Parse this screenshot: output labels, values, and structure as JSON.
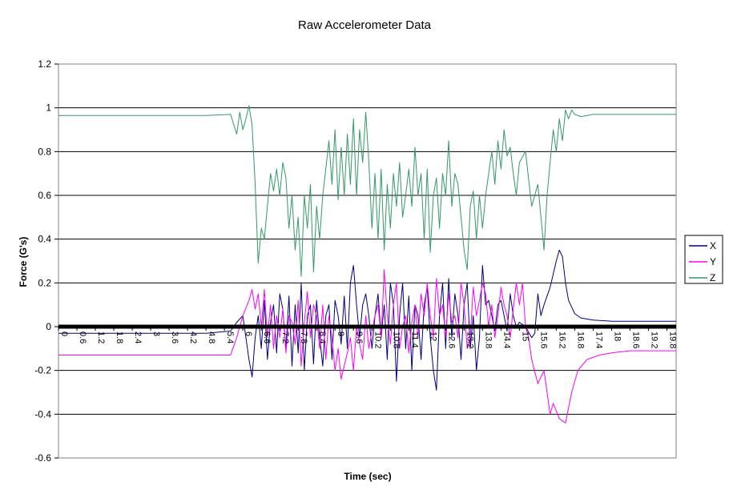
{
  "chart_data": {
    "type": "line",
    "title": "Raw Accelerometer Data",
    "xlabel": "Time (sec)",
    "ylabel": "Force (G's)",
    "ylim": [
      -0.6,
      1.2
    ],
    "xlim": [
      0,
      20.1
    ],
    "y_ticks": [
      "1.2",
      "1",
      "0.8",
      "0.6",
      "0.4",
      "0.2",
      "0",
      "-0.2",
      "-0.4",
      "-0.6"
    ],
    "x_ticks": [
      "0",
      "0.6",
      "1.2",
      "1.8",
      "2.4",
      "3",
      "3.6",
      "4.2",
      "4.8",
      "5.4",
      "6",
      "6.6",
      "7.2",
      "7.8",
      "8.4",
      "9",
      "9.6",
      "10.2",
      "10.8",
      "11.4",
      "12",
      "12.6",
      "13.2",
      "13.8",
      "14.4",
      "15",
      "15.6",
      "16.2",
      "16.8",
      "17.4",
      "18",
      "18.6",
      "19.2",
      "19.8"
    ],
    "grid": true,
    "legend_position": "right",
    "series": [
      {
        "name": "X",
        "color": "#000080",
        "x": [
          0,
          1.2,
          2.4,
          3.6,
          4.8,
          5.6,
          5.8,
          6.0,
          6.2,
          6.3,
          6.4,
          6.5,
          6.6,
          6.7,
          6.8,
          6.9,
          7.0,
          7.1,
          7.2,
          7.3,
          7.4,
          7.5,
          7.6,
          7.7,
          7.8,
          7.9,
          8.0,
          8.1,
          8.2,
          8.3,
          8.4,
          8.5,
          8.6,
          8.7,
          8.8,
          8.9,
          9.0,
          9.1,
          9.2,
          9.3,
          9.4,
          9.5,
          9.6,
          9.7,
          9.8,
          9.9,
          10.0,
          10.1,
          10.2,
          10.3,
          10.4,
          10.5,
          10.6,
          10.7,
          10.8,
          10.9,
          11.0,
          11.1,
          11.2,
          11.3,
          11.4,
          11.5,
          11.6,
          11.7,
          11.8,
          11.9,
          12.0,
          12.1,
          12.2,
          12.3,
          12.4,
          12.5,
          12.6,
          12.7,
          12.8,
          12.9,
          13.0,
          13.1,
          13.2,
          13.3,
          13.4,
          13.5,
          13.6,
          13.7,
          13.8,
          13.9,
          14.0,
          14.1,
          14.2,
          14.3,
          14.4,
          14.5,
          14.6,
          14.7,
          14.8,
          14.9,
          15.0,
          15.2,
          15.4,
          15.5,
          15.6,
          15.7,
          15.8,
          16.0,
          16.2,
          16.3,
          16.4,
          16.5,
          16.6,
          16.8,
          17.0,
          17.4,
          18.0,
          18.6,
          19.2,
          19.8,
          20.1
        ],
        "y": [
          -0.03,
          -0.03,
          -0.03,
          -0.03,
          -0.03,
          -0.02,
          0.02,
          0.05,
          -0.15,
          -0.23,
          -0.05,
          0.05,
          -0.1,
          0.12,
          -0.15,
          0.02,
          0.1,
          -0.12,
          0.15,
          0.08,
          -0.1,
          0.14,
          -0.18,
          0.1,
          -0.12,
          0.2,
          -0.2,
          0.05,
          0.1,
          -0.17,
          0.12,
          -0.05,
          -0.18,
          0.05,
          0.1,
          -0.15,
          0.12,
          0.05,
          -0.08,
          0.14,
          -0.1,
          0.2,
          0.28,
          0.1,
          -0.05,
          0.1,
          0.15,
          0.05,
          -0.1,
          0.05,
          0.15,
          -0.05,
          0.1,
          -0.15,
          0.2,
          0.1,
          -0.25,
          0.05,
          0.2,
          -0.1,
          0.14,
          -0.2,
          0.1,
          0.05,
          -0.15,
          0.1,
          0.18,
          -0.05,
          -0.2,
          -0.29,
          0.05,
          0.2,
          -0.1,
          0.22,
          -0.05,
          0.15,
          0.05,
          -0.15,
          0.1,
          0.2,
          -0.1,
          0.05,
          -0.2,
          -0.05,
          0.28,
          0.1,
          0.12,
          0.05,
          -0.02,
          0.1,
          0.12,
          0.05,
          -0.02,
          0.15,
          0.05,
          0.0,
          0.02,
          0.0,
          -0.05,
          -0.03,
          0.15,
          0.05,
          0.1,
          0.18,
          0.3,
          0.35,
          0.32,
          0.2,
          0.12,
          0.06,
          0.04,
          0.03,
          0.025,
          0.025,
          0.025,
          0.025,
          0.025
        ]
      },
      {
        "name": "Y",
        "color": "#ff00ff",
        "x": [
          0,
          1.2,
          2.4,
          3.6,
          4.8,
          5.6,
          5.8,
          6.0,
          6.2,
          6.3,
          6.4,
          6.5,
          6.6,
          6.7,
          6.8,
          6.9,
          7.0,
          7.1,
          7.2,
          7.3,
          7.4,
          7.5,
          7.6,
          7.7,
          7.8,
          7.9,
          8.0,
          8.1,
          8.2,
          8.3,
          8.4,
          8.5,
          8.6,
          8.7,
          8.8,
          8.9,
          9.0,
          9.1,
          9.2,
          9.3,
          9.4,
          9.5,
          9.6,
          9.7,
          9.8,
          9.9,
          10.0,
          10.1,
          10.2,
          10.3,
          10.4,
          10.5,
          10.6,
          10.7,
          10.8,
          10.9,
          11.0,
          11.1,
          11.2,
          11.3,
          11.4,
          11.5,
          11.6,
          11.7,
          11.8,
          11.9,
          12.0,
          12.1,
          12.2,
          12.3,
          12.4,
          12.5,
          12.6,
          12.7,
          12.8,
          12.9,
          13.0,
          13.1,
          13.2,
          13.3,
          13.4,
          13.5,
          13.6,
          13.7,
          13.8,
          13.9,
          14.0,
          14.1,
          14.2,
          14.3,
          14.4,
          14.5,
          14.6,
          14.7,
          14.8,
          14.9,
          15.0,
          15.1,
          15.2,
          15.3,
          15.4,
          15.6,
          15.8,
          15.9,
          16.0,
          16.1,
          16.3,
          16.5,
          16.7,
          16.9,
          17.2,
          17.6,
          18.0,
          18.6,
          19.2,
          19.8,
          20.1
        ],
        "y": [
          -0.13,
          -0.13,
          -0.13,
          -0.13,
          -0.13,
          -0.13,
          -0.05,
          0.05,
          0.12,
          0.17,
          0.08,
          0.15,
          0.0,
          0.17,
          -0.05,
          0.1,
          -0.1,
          0.05,
          -0.05,
          0.08,
          -0.12,
          0.05,
          0.02,
          -0.08,
          0.12,
          -0.18,
          0.02,
          0.16,
          -0.05,
          0.1,
          0.05,
          -0.1,
          0.1,
          -0.15,
          0.05,
          -0.05,
          -0.2,
          -0.1,
          -0.24,
          -0.18,
          -0.12,
          -0.05,
          -0.2,
          0.0,
          -0.08,
          -0.15,
          0.05,
          -0.1,
          -0.02,
          0.05,
          0.1,
          -0.05,
          0.26,
          0.05,
          -0.08,
          0.1,
          0.2,
          -0.1,
          0.0,
          0.05,
          -0.12,
          0.02,
          0.1,
          -0.05,
          0.15,
          0.05,
          0.2,
          0.05,
          -0.05,
          0.22,
          0.05,
          0.1,
          -0.05,
          0.15,
          0.02,
          0.05,
          -0.05,
          0.2,
          0.1,
          -0.1,
          -0.05,
          0.18,
          0.05,
          0.12,
          0.2,
          0.15,
          0.0,
          0.1,
          -0.05,
          0.05,
          0.18,
          0.1,
          0.05,
          -0.05,
          0.08,
          0.2,
          0.1,
          0.2,
          0.0,
          -0.05,
          -0.15,
          -0.26,
          -0.2,
          -0.3,
          -0.4,
          -0.35,
          -0.42,
          -0.44,
          -0.3,
          -0.2,
          -0.15,
          -0.13,
          -0.12,
          -0.11,
          -0.11,
          -0.11,
          -0.11
        ]
      },
      {
        "name": "Z",
        "color": "#339966",
        "x": [
          0,
          1.2,
          2.4,
          3.6,
          4.8,
          5.6,
          5.8,
          5.9,
          6.0,
          6.1,
          6.2,
          6.3,
          6.4,
          6.5,
          6.6,
          6.7,
          6.8,
          6.9,
          7.0,
          7.1,
          7.2,
          7.3,
          7.4,
          7.5,
          7.6,
          7.7,
          7.8,
          7.9,
          8.0,
          8.1,
          8.2,
          8.3,
          8.4,
          8.5,
          8.6,
          8.7,
          8.8,
          8.9,
          9.0,
          9.1,
          9.2,
          9.3,
          9.4,
          9.5,
          9.6,
          9.7,
          9.8,
          9.9,
          10.0,
          10.1,
          10.2,
          10.3,
          10.4,
          10.5,
          10.6,
          10.7,
          10.8,
          10.9,
          11.0,
          11.1,
          11.2,
          11.3,
          11.4,
          11.5,
          11.6,
          11.7,
          11.8,
          11.9,
          12.0,
          12.1,
          12.2,
          12.3,
          12.4,
          12.5,
          12.6,
          12.7,
          12.8,
          12.9,
          13.0,
          13.1,
          13.2,
          13.3,
          13.4,
          13.5,
          13.6,
          13.7,
          13.8,
          13.9,
          14.0,
          14.1,
          14.2,
          14.3,
          14.4,
          14.5,
          14.6,
          14.7,
          14.8,
          14.9,
          15.0,
          15.2,
          15.4,
          15.6,
          15.8,
          15.9,
          16.0,
          16.1,
          16.2,
          16.3,
          16.4,
          16.5,
          16.6,
          16.7,
          16.8,
          17.0,
          17.4,
          18.0,
          18.6,
          19.2,
          19.8,
          20.1
        ],
        "y": [
          0.965,
          0.965,
          0.965,
          0.965,
          0.965,
          0.97,
          0.88,
          0.98,
          0.9,
          0.95,
          1.01,
          0.92,
          0.65,
          0.29,
          0.45,
          0.4,
          0.55,
          0.7,
          0.62,
          0.72,
          0.6,
          0.75,
          0.68,
          0.45,
          0.6,
          0.35,
          0.5,
          0.23,
          0.6,
          0.45,
          0.65,
          0.25,
          0.55,
          0.4,
          0.6,
          0.72,
          0.85,
          0.65,
          0.9,
          0.58,
          0.82,
          0.6,
          0.88,
          0.65,
          0.95,
          0.6,
          0.9,
          0.75,
          0.98,
          0.75,
          0.45,
          0.7,
          0.4,
          0.72,
          0.35,
          0.65,
          0.45,
          0.7,
          0.55,
          0.75,
          0.5,
          0.6,
          0.72,
          0.55,
          0.82,
          0.6,
          0.7,
          0.4,
          0.72,
          0.34,
          0.6,
          0.68,
          0.45,
          0.7,
          0.6,
          0.85,
          0.55,
          0.7,
          0.65,
          0.5,
          0.35,
          0.26,
          0.55,
          0.62,
          0.4,
          0.6,
          0.45,
          0.6,
          0.7,
          0.8,
          0.65,
          0.85,
          0.72,
          0.9,
          0.78,
          0.82,
          0.7,
          0.6,
          0.75,
          0.8,
          0.55,
          0.65,
          0.35,
          0.6,
          0.75,
          0.9,
          0.8,
          0.95,
          0.85,
          0.99,
          0.95,
          0.99,
          0.97,
          0.96,
          0.97,
          0.97,
          0.97,
          0.97,
          0.97,
          0.97
        ]
      }
    ]
  }
}
